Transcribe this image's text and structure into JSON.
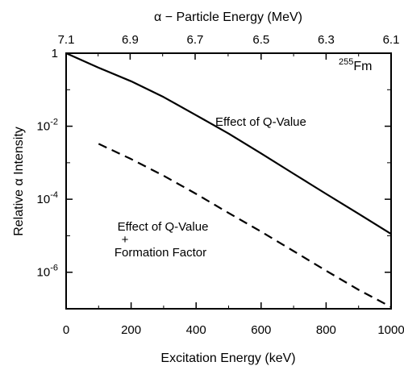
{
  "chart_data": {
    "type": "line",
    "top_axis_title": "α − Particle Energy (MeV)",
    "xlabel": "Excitation Energy (keV)",
    "ylabel": "Relative α Intensity",
    "xlim": [
      0,
      1000
    ],
    "ylim": [
      1e-07,
      1
    ],
    "yscale": "log",
    "x_ticks": [
      0,
      200,
      400,
      600,
      800,
      1000
    ],
    "x_tick_labels": [
      "0",
      "200",
      "400",
      "600",
      "800",
      "1000"
    ],
    "y_ticks": [
      1,
      0.01,
      0.0001,
      1e-06
    ],
    "y_tick_labels": [
      {
        "base": "1",
        "exp": ""
      },
      {
        "base": "10",
        "exp": "-2"
      },
      {
        "base": "10",
        "exp": "-4"
      },
      {
        "base": "10",
        "exp": "-6"
      }
    ],
    "top_ticks": [
      {
        "label": "7.1",
        "x": 0
      },
      {
        "label": "6.9",
        "x": 197
      },
      {
        "label": "6.7",
        "x": 397
      },
      {
        "label": "6.5",
        "x": 600
      },
      {
        "label": "6.3",
        "x": 800
      },
      {
        "label": "6.1",
        "x": 1000
      }
    ],
    "nuclide": {
      "mass": "255",
      "symbol": "Fm"
    },
    "series": [
      {
        "label": "Effect of Q-Value",
        "style": "solid",
        "x": [
          0,
          100,
          200,
          300,
          400,
          500,
          600,
          700,
          800,
          900,
          1000
        ],
        "y": [
          1,
          0.4,
          0.17,
          0.063,
          0.02,
          0.0063,
          0.0018,
          0.0005,
          0.00014,
          4e-05,
          1.12e-05
        ]
      },
      {
        "label": "Effect of Q-Value + Formation Factor",
        "style": "dashed",
        "x": [
          100,
          200,
          300,
          400,
          500,
          600,
          700,
          800,
          900,
          1000
        ],
        "y": [
          0.0033,
          0.00126,
          0.00044,
          0.00014,
          4.2e-05,
          1.3e-05,
          3.8e-06,
          1.1e-06,
          3.3e-07,
          1.12e-07
        ]
      }
    ],
    "annotations": {
      "solid_label": "Effect of Q-Value",
      "dashed_label_line1": "Effect of Q-Value",
      "dashed_label_line2": "+",
      "dashed_label_line3": "Formation Factor"
    }
  }
}
